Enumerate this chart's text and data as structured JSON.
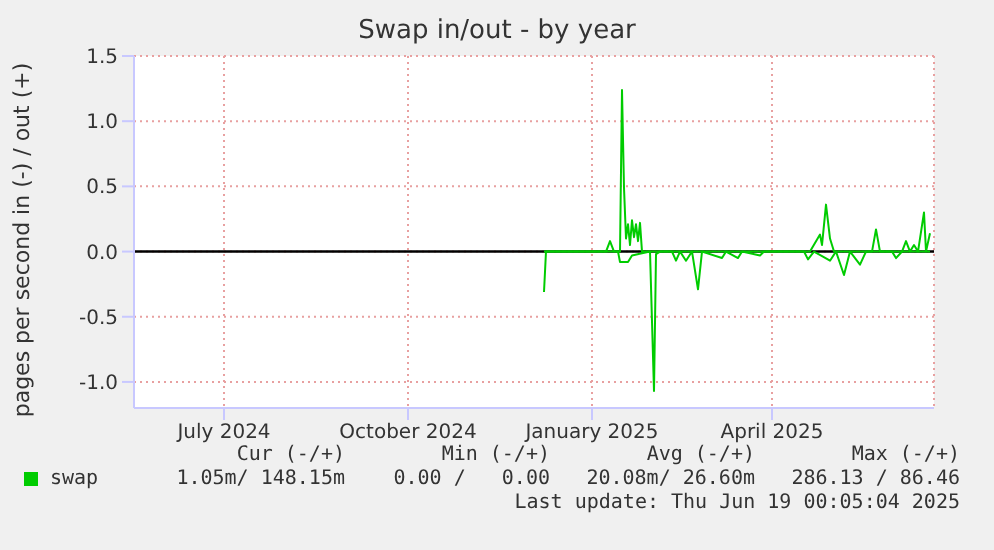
{
  "chart_data": {
    "type": "line",
    "title": "Swap in/out - by year",
    "ylabel": "pages per second in (-) / out (+)",
    "xlim": [
      "2024-05-17",
      "2025-06-21"
    ],
    "xticks": [
      {
        "value": "2024-07-01",
        "label": "July 2024"
      },
      {
        "value": "2024-10-01",
        "label": "October 2024"
      },
      {
        "value": "2025-01-01",
        "label": "January 2025"
      },
      {
        "value": "2025-04-01",
        "label": "April 2025"
      }
    ],
    "ylim": [
      -1.2,
      1.5
    ],
    "yticks": [
      {
        "value": -1,
        "label": "-1.0"
      },
      {
        "value": -0.5,
        "label": "-0.5"
      },
      {
        "value": 0,
        "label": "0.0"
      },
      {
        "value": 0.5,
        "label": "0.5"
      },
      {
        "value": 1,
        "label": "1.0"
      },
      {
        "value": 1.5,
        "label": "1.5"
      }
    ],
    "grid": true,
    "legend": "bottom left",
    "ref_lines": [
      {
        "axis": "y",
        "value": 0,
        "color": "#000000"
      }
    ],
    "series": [
      {
        "name": "swap",
        "color": "#00cc00",
        "x": [
          "2024-12-08",
          "2025-01-08",
          "2025-01-10",
          "2025-01-12",
          "2025-01-15",
          "2025-01-16",
          "2025-01-17",
          "2025-01-18",
          "2025-01-19",
          "2025-01-20",
          "2025-01-21",
          "2025-01-22",
          "2025-01-23",
          "2025-01-24",
          "2025-01-25",
          "2025-01-26",
          "2025-04-20",
          "2025-04-25",
          "2025-04-26",
          "2025-04-28",
          "2025-04-30",
          "2025-05-02",
          "2025-05-21",
          "2025-05-23",
          "2025-05-25",
          "2025-06-05",
          "2025-06-07",
          "2025-06-09",
          "2025-06-11",
          "2025-06-13",
          "2025-06-16",
          "2025-06-17",
          "2025-06-19"
        ],
        "values": [
          0,
          0,
          0.08,
          0,
          0,
          1.24,
          0.49,
          0.1,
          0.21,
          0.05,
          0.24,
          0.11,
          0.21,
          0.08,
          0.22,
          0,
          0,
          0.13,
          0.05,
          0.36,
          0.1,
          0,
          0,
          0.17,
          0,
          0,
          0.08,
          0,
          0.05,
          0,
          0.3,
          0,
          0.14
        ]
      },
      {
        "color": "#00cc00",
        "x": [
          "2024-12-08",
          "2024-12-09",
          "2025-01-14",
          "2025-01-15",
          "2025-01-19",
          "2025-01-21",
          "2025-01-30",
          "2025-02-01",
          "2025-02-02",
          "2025-02-04",
          "2025-02-10",
          "2025-02-12",
          "2025-02-14",
          "2025-02-17",
          "2025-02-20",
          "2025-02-23",
          "2025-02-25",
          "2025-03-07",
          "2025-03-09",
          "2025-03-15",
          "2025-03-17",
          "2025-03-26",
          "2025-03-28",
          "2025-04-17",
          "2025-04-19",
          "2025-04-22",
          "2025-04-30",
          "2025-05-03",
          "2025-05-07",
          "2025-05-10",
          "2025-05-15",
          "2025-05-18",
          "2025-05-31",
          "2025-06-02",
          "2025-06-05",
          "2025-06-19"
        ],
        "values": [
          -0.31,
          0,
          0,
          -0.08,
          -0.08,
          -0.03,
          0,
          -1.07,
          -0.02,
          0,
          0,
          -0.07,
          0,
          -0.07,
          0,
          -0.29,
          0,
          -0.05,
          0,
          -0.05,
          0,
          -0.03,
          0,
          0,
          -0.06,
          0,
          -0.07,
          0,
          -0.18,
          0,
          -0.1,
          0,
          0,
          -0.05,
          0,
          0
        ]
      }
    ],
    "annotations": [
      "Cur (-/+)",
      "Min (-/+)",
      "Avg (-/+)",
      "Max (-/+)",
      "1.05m/ 148.15m",
      "0.00 /   0.00",
      "20.08m/ 26.60m",
      "286.13 / 86.46",
      "Last update: Thu Jun 19 00:05:04 2025"
    ]
  }
}
